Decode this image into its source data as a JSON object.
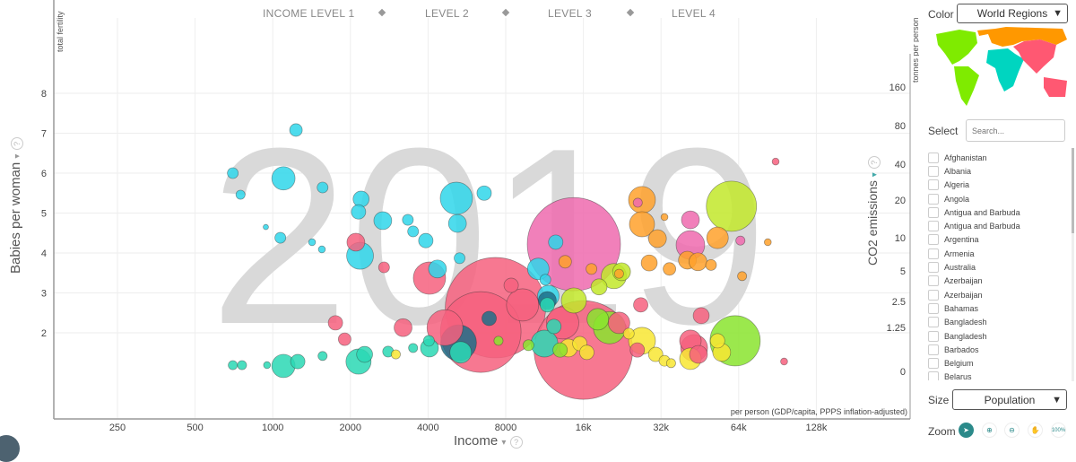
{
  "chart_data": {
    "type": "scatter",
    "watermark_year": "2019",
    "x_axis": {
      "label": "Income",
      "unit": "per person (GDP/capita, PPPS inflation-adjusted)",
      "scale": "log",
      "ticks": [
        "250",
        "500",
        "1000",
        "2000",
        "4000",
        "8000",
        "16k",
        "32k",
        "64k",
        "128k"
      ],
      "tick_values": [
        250,
        500,
        1000,
        2000,
        4000,
        8000,
        16000,
        32000,
        64000,
        128000
      ]
    },
    "y_axis": {
      "label": "Babies per woman",
      "unit": "total fertility",
      "scale": "linear",
      "ticks": [
        "8",
        "7",
        "6",
        "5",
        "4",
        "3",
        "2"
      ],
      "tick_values": [
        8,
        7,
        6,
        5,
        4,
        3,
        2
      ]
    },
    "right_axis": {
      "label": "CO2 emissions",
      "unit": "tonnes per person",
      "ticks": [
        "160",
        "80",
        "40",
        "20",
        "10",
        "5",
        "2.5",
        "1.25",
        "0"
      ]
    },
    "income_levels": [
      "INCOME LEVEL 1",
      "LEVEL 2",
      "LEVEL 3",
      "LEVEL 4"
    ],
    "grid": true,
    "size_indicator": "Population",
    "colors": {
      "cyan": "#2fd6ea",
      "teal": "#2ad8b4",
      "darkteal": "#1f6f88",
      "pink": "#f6607e",
      "magenta": "#ee6aae",
      "orange": "#ffa12b",
      "yellow": "#f8e632",
      "lime": "#c2e82a",
      "green": "#8ae42e"
    },
    "points": [
      {
        "income": 1230,
        "fertility": 7.08,
        "pop": 23,
        "color": "cyan"
      },
      {
        "income": 700,
        "fertility": 6.0,
        "pop": 17,
        "color": "cyan"
      },
      {
        "income": 1100,
        "fertility": 5.87,
        "pop": 78,
        "color": "cyan"
      },
      {
        "income": 750,
        "fertility": 5.46,
        "pop": 12,
        "color": "cyan"
      },
      {
        "income": 1560,
        "fertility": 5.64,
        "pop": 17,
        "color": "cyan"
      },
      {
        "income": 2200,
        "fertility": 5.35,
        "pop": 37,
        "color": "cyan"
      },
      {
        "income": 2150,
        "fertility": 5.03,
        "pop": 30,
        "color": "cyan"
      },
      {
        "income": 2670,
        "fertility": 4.81,
        "pop": 46,
        "color": "cyan"
      },
      {
        "income": 5150,
        "fertility": 5.37,
        "pop": 150,
        "color": "cyan"
      },
      {
        "income": 6600,
        "fertility": 5.5,
        "pop": 30,
        "color": "cyan"
      },
      {
        "income": 3340,
        "fertility": 4.83,
        "pop": 17,
        "color": "cyan"
      },
      {
        "income": 3920,
        "fertility": 4.31,
        "pop": 30,
        "color": "cyan"
      },
      {
        "income": 3500,
        "fertility": 4.54,
        "pop": 17,
        "color": "cyan"
      },
      {
        "income": 1070,
        "fertility": 4.38,
        "pop": 17,
        "color": "cyan"
      },
      {
        "income": 940,
        "fertility": 4.65,
        "pop": 4,
        "color": "cyan"
      },
      {
        "income": 1420,
        "fertility": 4.27,
        "pop": 7,
        "color": "cyan"
      },
      {
        "income": 1550,
        "fertility": 4.09,
        "pop": 7,
        "color": "cyan"
      },
      {
        "income": 2180,
        "fertility": 3.93,
        "pop": 104,
        "color": "cyan"
      },
      {
        "income": 5200,
        "fertility": 4.74,
        "pop": 46,
        "color": "cyan"
      },
      {
        "income": 4350,
        "fertility": 3.6,
        "pop": 46,
        "color": "cyan"
      },
      {
        "income": 5300,
        "fertility": 3.87,
        "pop": 17,
        "color": "cyan"
      },
      {
        "income": 10700,
        "fertility": 3.6,
        "pop": 67,
        "color": "cyan"
      },
      {
        "income": 12500,
        "fertility": 4.27,
        "pop": 30,
        "color": "cyan"
      },
      {
        "income": 11700,
        "fertility": 2.92,
        "pop": 67,
        "color": "cyan"
      },
      {
        "income": 11400,
        "fertility": 3.33,
        "pop": 17,
        "color": "cyan"
      },
      {
        "income": 700,
        "fertility": 1.19,
        "pop": 12,
        "color": "teal"
      },
      {
        "income": 760,
        "fertility": 1.19,
        "pop": 12,
        "color": "teal"
      },
      {
        "income": 950,
        "fertility": 1.19,
        "pop": 7,
        "color": "teal"
      },
      {
        "income": 1100,
        "fertility": 1.17,
        "pop": 78,
        "color": "teal"
      },
      {
        "income": 1250,
        "fertility": 1.28,
        "pop": 30,
        "color": "teal"
      },
      {
        "income": 1560,
        "fertility": 1.42,
        "pop": 12,
        "color": "teal"
      },
      {
        "income": 2150,
        "fertility": 1.28,
        "pop": 91,
        "color": "teal"
      },
      {
        "income": 2270,
        "fertility": 1.46,
        "pop": 37,
        "color": "teal"
      },
      {
        "income": 2800,
        "fertility": 1.53,
        "pop": 17,
        "color": "teal"
      },
      {
        "income": 3500,
        "fertility": 1.62,
        "pop": 12,
        "color": "teal"
      },
      {
        "income": 4050,
        "fertility": 1.62,
        "pop": 46,
        "color": "teal"
      },
      {
        "income": 5350,
        "fertility": 1.51,
        "pop": 67,
        "color": "teal"
      },
      {
        "income": 4030,
        "fertility": 1.8,
        "pop": 17,
        "color": "teal"
      },
      {
        "income": 11300,
        "fertility": 1.73,
        "pop": 104,
        "color": "teal"
      },
      {
        "income": 12300,
        "fertility": 2.16,
        "pop": 30,
        "color": "teal"
      },
      {
        "income": 11600,
        "fertility": 2.7,
        "pop": 30,
        "color": "teal"
      },
      {
        "income": 5250,
        "fertility": 1.75,
        "pop": 185,
        "color": "darkteal"
      },
      {
        "income": 6900,
        "fertility": 2.36,
        "pop": 30,
        "color": "darkteal"
      },
      {
        "income": 11600,
        "fertility": 2.81,
        "pop": 46,
        "color": "darkteal"
      },
      {
        "income": 7300,
        "fertility": 2.63,
        "pop": 1451,
        "color": "pink"
      },
      {
        "income": 6400,
        "fertility": 2.02,
        "pop": 937,
        "color": "pink"
      },
      {
        "income": 16000,
        "fertility": 1.57,
        "pop": 1400,
        "color": "pink"
      },
      {
        "income": 14700,
        "fertility": 4.22,
        "pop": 1251,
        "color": "magenta"
      },
      {
        "income": 4050,
        "fertility": 3.37,
        "pop": 150,
        "color": "pink"
      },
      {
        "income": 4650,
        "fertility": 2.13,
        "pop": 185,
        "color": "pink"
      },
      {
        "income": 9300,
        "fertility": 2.7,
        "pop": 150,
        "color": "pink"
      },
      {
        "income": 13300,
        "fertility": 2.25,
        "pop": 150,
        "color": "pink"
      },
      {
        "income": 1750,
        "fertility": 2.25,
        "pop": 30,
        "color": "pink"
      },
      {
        "income": 2100,
        "fertility": 4.27,
        "pop": 46,
        "color": "pink"
      },
      {
        "income": 2700,
        "fertility": 3.64,
        "pop": 17,
        "color": "pink"
      },
      {
        "income": 3200,
        "fertility": 2.13,
        "pop": 46,
        "color": "pink"
      },
      {
        "income": 8400,
        "fertility": 3.19,
        "pop": 30,
        "color": "pink"
      },
      {
        "income": 22000,
        "fertility": 2.25,
        "pop": 67,
        "color": "pink"
      },
      {
        "income": 26700,
        "fertility": 2.7,
        "pop": 30,
        "color": "pink"
      },
      {
        "income": 25900,
        "fertility": 1.57,
        "pop": 30,
        "color": "pink"
      },
      {
        "income": 41600,
        "fertility": 1.8,
        "pop": 67,
        "color": "pink"
      },
      {
        "income": 43000,
        "fertility": 1.62,
        "pop": 104,
        "color": "pink"
      },
      {
        "income": 44700,
        "fertility": 1.46,
        "pop": 46,
        "color": "pink"
      },
      {
        "income": 45800,
        "fertility": 2.43,
        "pop": 37,
        "color": "pink"
      },
      {
        "income": 65000,
        "fertility": 4.31,
        "pop": 12,
        "color": "magenta"
      },
      {
        "income": 89000,
        "fertility": 6.29,
        "pop": 7,
        "color": "pink"
      },
      {
        "income": 96000,
        "fertility": 1.28,
        "pop": 7,
        "color": "pink"
      },
      {
        "income": 1900,
        "fertility": 1.84,
        "pop": 23,
        "color": "pink"
      },
      {
        "income": 41600,
        "fertility": 4.2,
        "pop": 118,
        "color": "magenta"
      },
      {
        "income": 41600,
        "fertility": 4.83,
        "pop": 46,
        "color": "magenta"
      },
      {
        "income": 26000,
        "fertility": 5.26,
        "pop": 12,
        "color": "magenta"
      },
      {
        "income": 27000,
        "fertility": 5.33,
        "pop": 104,
        "color": "orange"
      },
      {
        "income": 27000,
        "fertility": 4.72,
        "pop": 91,
        "color": "orange"
      },
      {
        "income": 31000,
        "fertility": 4.36,
        "pop": 46,
        "color": "orange"
      },
      {
        "income": 34500,
        "fertility": 3.6,
        "pop": 23,
        "color": "orange"
      },
      {
        "income": 28800,
        "fertility": 3.75,
        "pop": 37,
        "color": "orange"
      },
      {
        "income": 22000,
        "fertility": 3.48,
        "pop": 12,
        "color": "orange"
      },
      {
        "income": 40500,
        "fertility": 3.82,
        "pop": 46,
        "color": "orange"
      },
      {
        "income": 44500,
        "fertility": 3.78,
        "pop": 46,
        "color": "orange"
      },
      {
        "income": 53000,
        "fertility": 4.38,
        "pop": 67,
        "color": "orange"
      },
      {
        "income": 50000,
        "fertility": 3.7,
        "pop": 17,
        "color": "orange"
      },
      {
        "income": 66000,
        "fertility": 3.42,
        "pop": 12,
        "color": "orange"
      },
      {
        "income": 83000,
        "fertility": 4.27,
        "pop": 7,
        "color": "orange"
      },
      {
        "income": 33000,
        "fertility": 4.9,
        "pop": 7,
        "color": "orange"
      },
      {
        "income": 13600,
        "fertility": 3.78,
        "pop": 23,
        "color": "orange"
      },
      {
        "income": 17200,
        "fertility": 3.6,
        "pop": 17,
        "color": "orange"
      },
      {
        "income": 27000,
        "fertility": 1.8,
        "pop": 104,
        "color": "yellow"
      },
      {
        "income": 24000,
        "fertility": 1.98,
        "pop": 17,
        "color": "yellow"
      },
      {
        "income": 30500,
        "fertility": 1.46,
        "pop": 30,
        "color": "yellow"
      },
      {
        "income": 33000,
        "fertility": 1.3,
        "pop": 17,
        "color": "yellow"
      },
      {
        "income": 35000,
        "fertility": 1.24,
        "pop": 12,
        "color": "yellow"
      },
      {
        "income": 41600,
        "fertility": 1.35,
        "pop": 67,
        "color": "yellow"
      },
      {
        "income": 53000,
        "fertility": 1.8,
        "pop": 30,
        "color": "yellow"
      },
      {
        "income": 55000,
        "fertility": 1.51,
        "pop": 46,
        "color": "yellow"
      },
      {
        "income": 14000,
        "fertility": 1.62,
        "pop": 46,
        "color": "yellow"
      },
      {
        "income": 15500,
        "fertility": 1.73,
        "pop": 30,
        "color": "yellow"
      },
      {
        "income": 16500,
        "fertility": 1.51,
        "pop": 30,
        "color": "yellow"
      },
      {
        "income": 3000,
        "fertility": 1.46,
        "pop": 12,
        "color": "yellow"
      },
      {
        "income": 60000,
        "fertility": 5.17,
        "pop": 363,
        "color": "lime"
      },
      {
        "income": 21000,
        "fertility": 3.42,
        "pop": 91,
        "color": "lime"
      },
      {
        "income": 22500,
        "fertility": 3.53,
        "pop": 46,
        "color": "lime"
      },
      {
        "income": 18400,
        "fertility": 3.15,
        "pop": 37,
        "color": "lime"
      },
      {
        "income": 14700,
        "fertility": 2.81,
        "pop": 91,
        "color": "lime"
      },
      {
        "income": 62000,
        "fertility": 1.8,
        "pop": 363,
        "color": "green"
      },
      {
        "income": 20200,
        "fertility": 2.13,
        "pop": 150,
        "color": "green"
      },
      {
        "income": 18200,
        "fertility": 2.34,
        "pop": 67,
        "color": "green"
      },
      {
        "income": 13000,
        "fertility": 1.57,
        "pop": 30,
        "color": "green"
      },
      {
        "income": 9800,
        "fertility": 1.69,
        "pop": 17,
        "color": "green"
      },
      {
        "income": 7500,
        "fertility": 1.8,
        "pop": 12,
        "color": "green"
      }
    ]
  },
  "axis_controls": {
    "y_label": "Babies per woman",
    "y_unit": "total fertility",
    "x_label": "Income",
    "x_unit": "per person (GDP/capita, PPPS inflation-adjusted)",
    "c_label": "CO2 emissions",
    "c_unit": "tonnes per person",
    "arrow": "▾",
    "help": "?"
  },
  "panel": {
    "color_label": "Color",
    "color_value": "World Regions",
    "map_colors": {
      "americas": "#7feb00",
      "europe": "#ff9800",
      "africa": "#00d5c0",
      "asia": "#ff5872"
    },
    "select_label": "Select",
    "search_placeholder": "Search...",
    "countries": [
      "Afghanistan",
      "Albania",
      "Algeria",
      "Angola",
      "Antigua and Barbuda",
      "Antigua and Barbuda",
      "Argentina",
      "Armenia",
      "Australia",
      "Azerbaijan",
      "Azerbaijan",
      "Bahamas",
      "Bangladesh",
      "Bangladesh",
      "Barbados",
      "Belgium",
      "Belarus"
    ],
    "size_label": "Size",
    "size_value": "Population",
    "zoom_label": "Zoom",
    "zoom_buttons": {
      "arrow": "cursor-icon",
      "plus": "zoom-in-icon",
      "minus": "zoom-out-icon",
      "hand": "pan-icon",
      "reset": "100%"
    },
    "dropdown_arrow": "▼"
  }
}
